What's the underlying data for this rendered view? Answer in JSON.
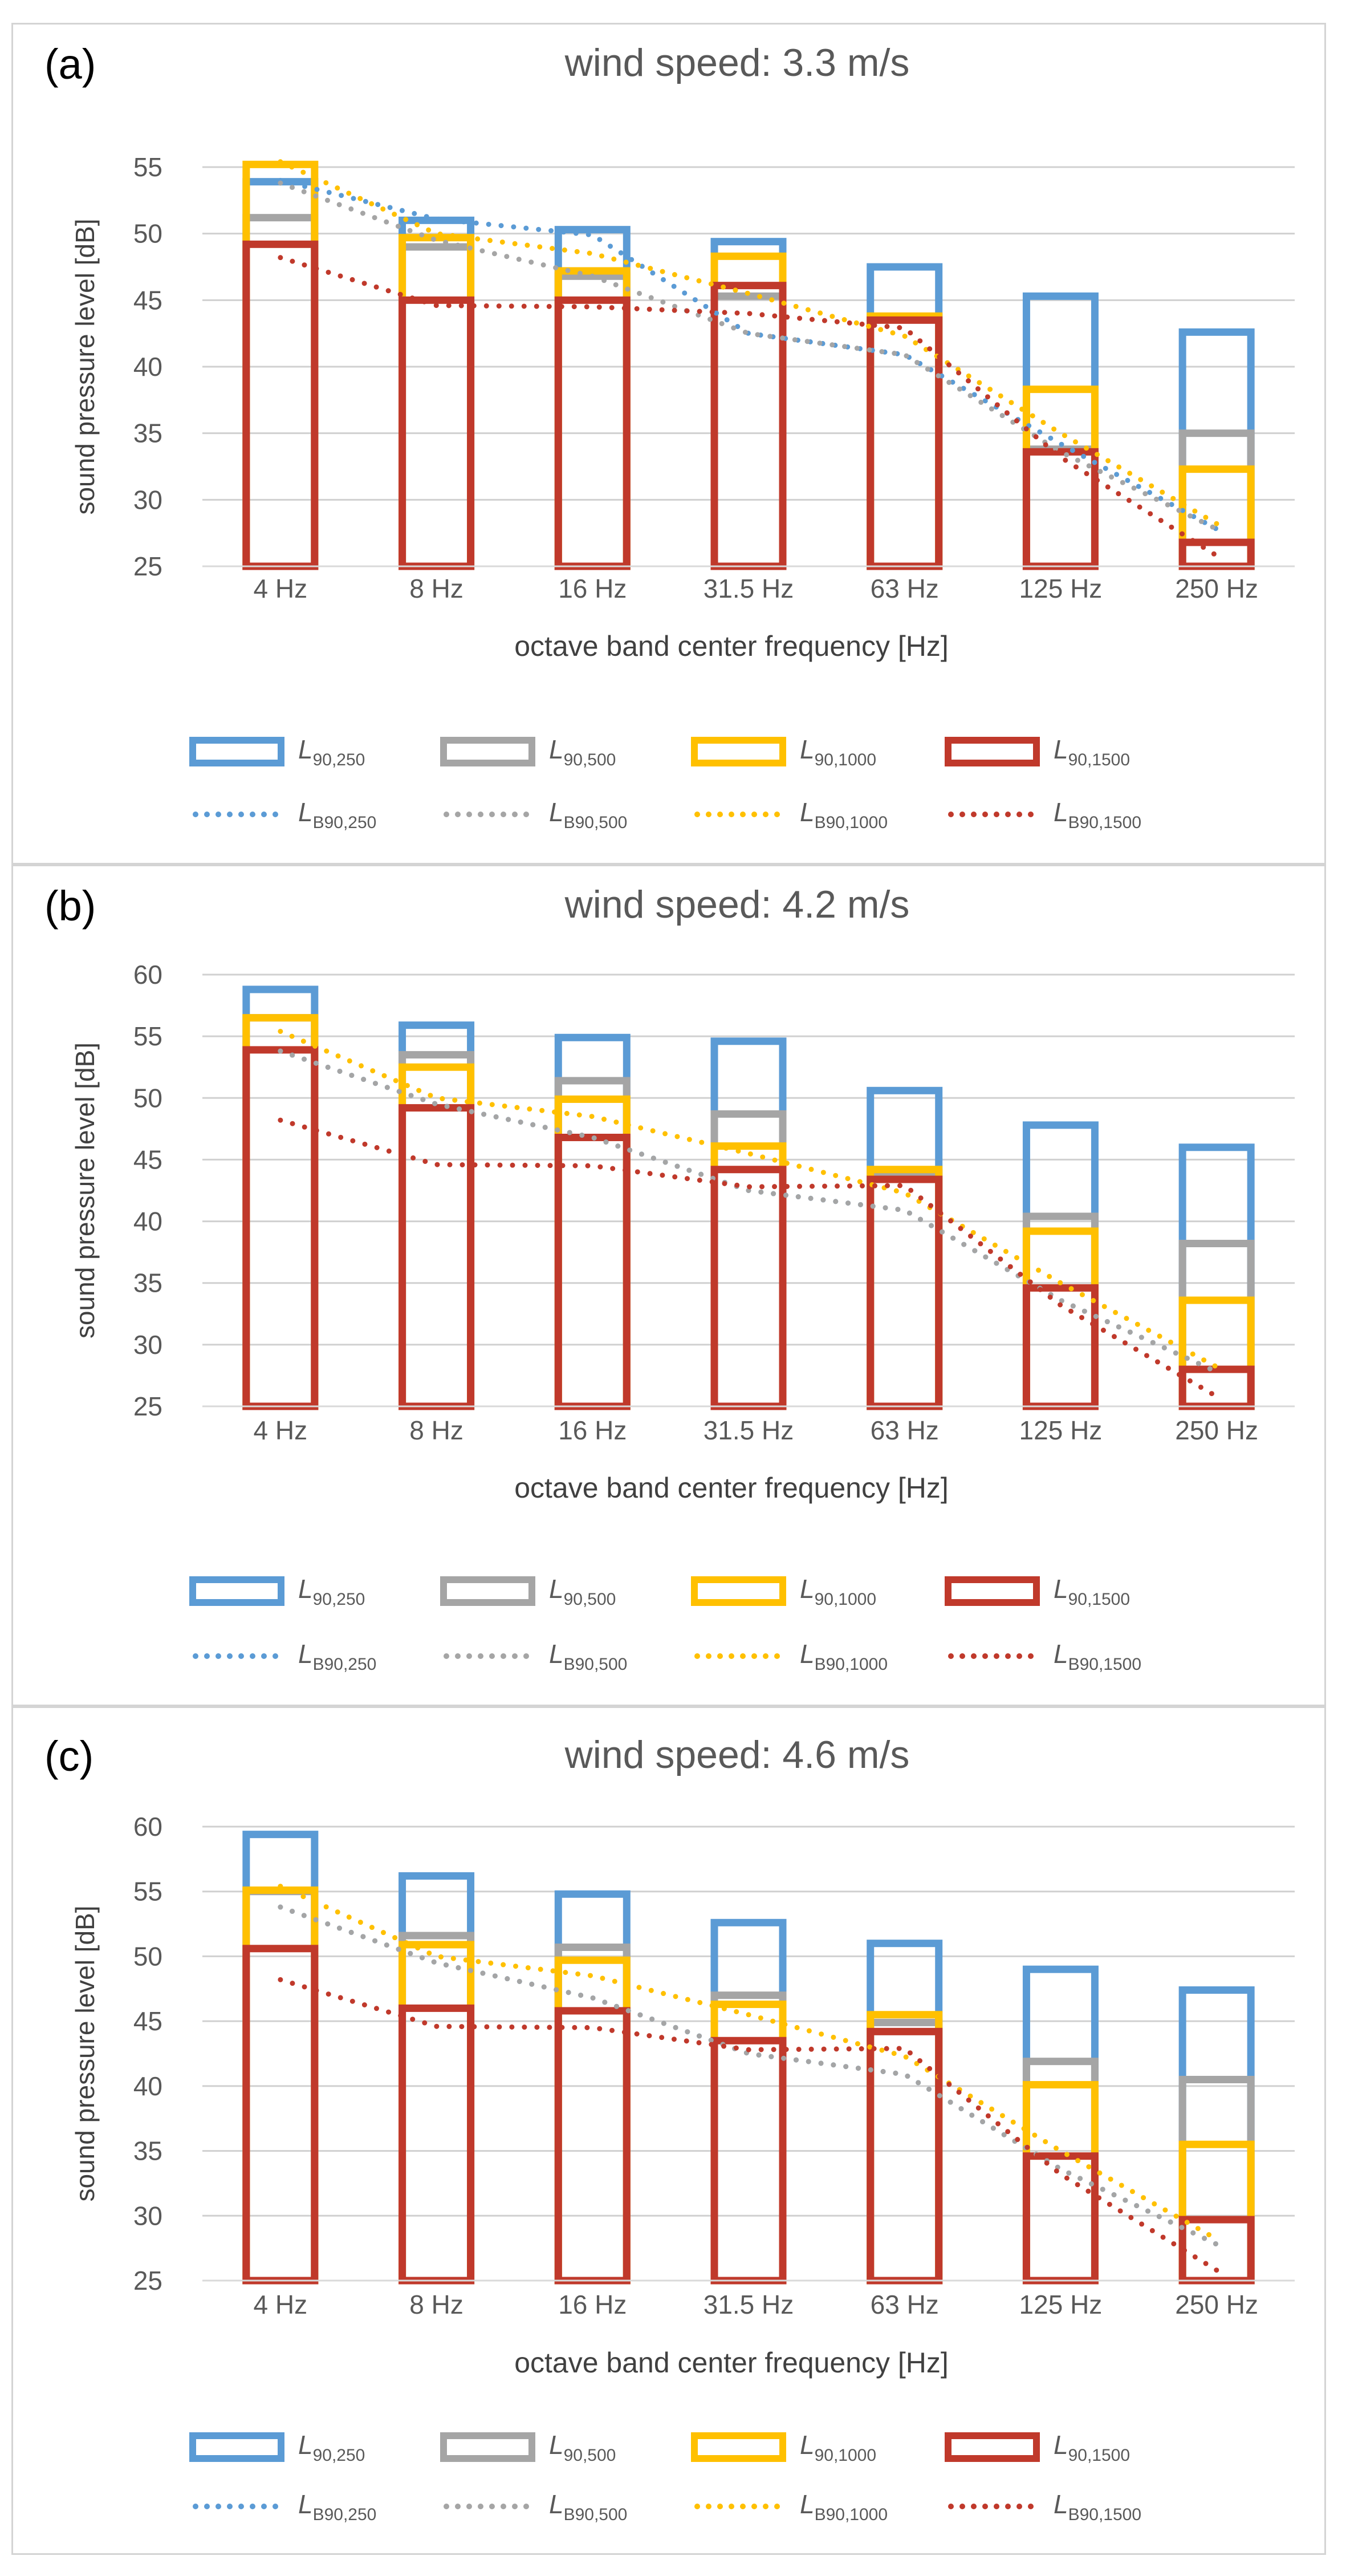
{
  "chart_data": [
    {
      "type": "bar",
      "panel_label": "(a)",
      "title": "wind speed: 3.3 m/s",
      "xlabel": "octave band center frequency [Hz]",
      "ylabel": "sound pressure level [dB]",
      "ylim": [
        25,
        55
      ],
      "yticks": [
        25,
        30,
        35,
        40,
        45,
        50,
        55
      ],
      "grid": true,
      "legend_position": "bottom",
      "categories": [
        "4 Hz",
        "8 Hz",
        "16 Hz",
        "31.5 Hz",
        "63 Hz",
        "125 Hz",
        "250 Hz"
      ],
      "bar_series": [
        {
          "name_main": "L",
          "name_sub": "90,250",
          "color": "#5b9bd5",
          "values": [
            53.9,
            51.0,
            50.3,
            49.4,
            47.5,
            45.3,
            42.6
          ]
        },
        {
          "name_main": "L",
          "name_sub": "90,500",
          "color": "#a5a5a5",
          "values": [
            51.2,
            49.0,
            46.8,
            45.3,
            43.7,
            33.8,
            35.0
          ]
        },
        {
          "name_main": "L",
          "name_sub": "90,1000",
          "color": "#ffc000",
          "values": [
            55.2,
            49.7,
            47.2,
            48.3,
            43.8,
            38.3,
            32.3
          ]
        },
        {
          "name_main": "L",
          "name_sub": "90,1500",
          "color": "#c0392b",
          "values": [
            49.2,
            45.0,
            45.0,
            46.1,
            43.5,
            33.6,
            26.8
          ]
        }
      ],
      "line_series": [
        {
          "name_main": "L",
          "name_sub": "B90,250",
          "color": "#5b9bd5",
          "values": [
            54.0,
            51.1,
            49.9,
            42.5,
            40.9,
            34.2,
            27.8
          ]
        },
        {
          "name_main": "L",
          "name_sub": "B90,500",
          "color": "#a5a5a5",
          "values": [
            53.8,
            49.5,
            46.8,
            42.5,
            40.9,
            33.6,
            27.8
          ]
        },
        {
          "name_main": "L",
          "name_sub": "B90,1000",
          "color": "#ffc000",
          "values": [
            55.4,
            50.0,
            48.5,
            45.5,
            42.3,
            35.0,
            28.2
          ]
        },
        {
          "name_main": "L",
          "name_sub": "B90,1500",
          "color": "#c0392b",
          "values": [
            48.2,
            44.6,
            44.5,
            44.0,
            42.9,
            33.2,
            25.8
          ]
        }
      ]
    },
    {
      "type": "bar",
      "panel_label": "(b)",
      "title": "wind speed: 4.2 m/s",
      "xlabel": "octave band center frequency [Hz]",
      "ylabel": "sound pressure level [dB]",
      "ylim": [
        25,
        60
      ],
      "yticks": [
        25,
        30,
        35,
        40,
        45,
        50,
        55,
        60
      ],
      "grid": true,
      "legend_position": "bottom",
      "categories": [
        "4 Hz",
        "8 Hz",
        "16 Hz",
        "31.5 Hz",
        "63 Hz",
        "125 Hz",
        "250 Hz"
      ],
      "bar_series": [
        {
          "name_main": "L",
          "name_sub": "90,250",
          "color": "#5b9bd5",
          "values": [
            58.8,
            55.9,
            54.9,
            54.6,
            50.6,
            47.8,
            46.0
          ]
        },
        {
          "name_main": "L",
          "name_sub": "90,500",
          "color": "#a5a5a5",
          "values": [
            56.5,
            53.5,
            51.4,
            48.7,
            43.9,
            40.4,
            38.2
          ]
        },
        {
          "name_main": "L",
          "name_sub": "90,1000",
          "color": "#ffc000",
          "values": [
            56.5,
            52.5,
            49.9,
            46.1,
            44.2,
            39.2,
            33.6
          ]
        },
        {
          "name_main": "L",
          "name_sub": "90,1500",
          "color": "#c0392b",
          "values": [
            53.9,
            49.2,
            46.8,
            44.2,
            43.4,
            34.6,
            28.0
          ]
        }
      ],
      "line_series": [
        {
          "name_main": "L",
          "name_sub": "B90,250",
          "color": "#5b9bd5",
          "values": [
            53.8,
            49.5,
            46.8,
            42.5,
            40.9,
            33.6,
            27.8
          ]
        },
        {
          "name_main": "L",
          "name_sub": "B90,500",
          "color": "#a5a5a5",
          "values": [
            53.8,
            49.5,
            46.8,
            42.5,
            40.9,
            33.6,
            27.8
          ]
        },
        {
          "name_main": "L",
          "name_sub": "B90,1000",
          "color": "#ffc000",
          "values": [
            55.4,
            50.0,
            48.5,
            45.5,
            42.3,
            35.0,
            28.2
          ]
        },
        {
          "name_main": "L",
          "name_sub": "B90,1500",
          "color": "#c0392b",
          "values": [
            48.2,
            44.6,
            44.5,
            42.8,
            42.9,
            33.2,
            25.8
          ]
        }
      ]
    },
    {
      "type": "bar",
      "panel_label": "(c)",
      "title": "wind speed: 4.6 m/s",
      "xlabel": "octave band center frequency [Hz]",
      "ylabel": "sound pressure level [dB]",
      "ylim": [
        25,
        60
      ],
      "yticks": [
        25,
        30,
        35,
        40,
        45,
        50,
        55,
        60
      ],
      "grid": true,
      "legend_position": "bottom",
      "categories": [
        "4 Hz",
        "8 Hz",
        "16 Hz",
        "31.5 Hz",
        "63 Hz",
        "125 Hz",
        "250 Hz"
      ],
      "bar_series": [
        {
          "name_main": "L",
          "name_sub": "90,250",
          "color": "#5b9bd5",
          "values": [
            59.4,
            56.2,
            54.8,
            52.6,
            51.0,
            49.0,
            47.4
          ]
        },
        {
          "name_main": "L",
          "name_sub": "90,500",
          "color": "#a5a5a5",
          "values": [
            55.0,
            51.6,
            50.7,
            47.0,
            44.9,
            41.9,
            40.5
          ]
        },
        {
          "name_main": "L",
          "name_sub": "90,1000",
          "color": "#ffc000",
          "values": [
            55.1,
            50.9,
            49.7,
            46.3,
            45.5,
            40.1,
            35.5
          ]
        },
        {
          "name_main": "L",
          "name_sub": "90,1500",
          "color": "#c0392b",
          "values": [
            50.6,
            46.0,
            45.8,
            43.5,
            44.2,
            34.6,
            29.7
          ]
        }
      ],
      "line_series": [
        {
          "name_main": "L",
          "name_sub": "B90,250",
          "color": "#5b9bd5",
          "values": [
            53.8,
            49.5,
            46.8,
            42.5,
            40.9,
            33.6,
            27.8
          ]
        },
        {
          "name_main": "L",
          "name_sub": "B90,500",
          "color": "#a5a5a5",
          "values": [
            53.8,
            49.5,
            46.8,
            42.5,
            40.9,
            33.6,
            27.8
          ]
        },
        {
          "name_main": "L",
          "name_sub": "B90,1000",
          "color": "#ffc000",
          "values": [
            55.4,
            50.0,
            48.5,
            45.5,
            42.3,
            35.0,
            28.2
          ]
        },
        {
          "name_main": "L",
          "name_sub": "B90,1500",
          "color": "#c0392b",
          "values": [
            48.2,
            44.6,
            44.5,
            42.8,
            42.9,
            33.2,
            25.8
          ]
        }
      ]
    }
  ]
}
